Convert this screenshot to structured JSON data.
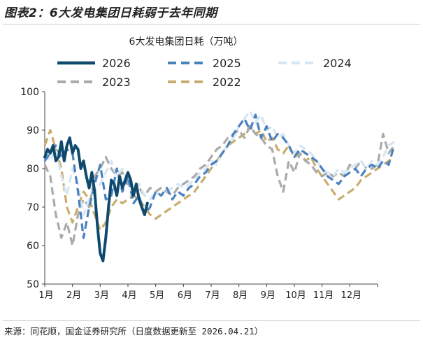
{
  "figure_title": "图表2：6大发电集团日耗弱于去年同期",
  "source_note": "来源：同花顺，国金证券研究所（日度数据更新至 2026.04.21）",
  "colors": {
    "2026": "#0f4a6e",
    "2025": "#4a82c0",
    "2024": "#d6e6f3",
    "2023": "#aaaaaa",
    "2022": "#c9ad6e"
  },
  "chart_data": {
    "type": "line",
    "title": "6大发电集团日耗（万吨）",
    "xlabel": "",
    "ylabel": "",
    "ylim": [
      50,
      100
    ],
    "yticks": [
      50,
      60,
      70,
      80,
      90,
      100
    ],
    "xlim": [
      0,
      12
    ],
    "xtick_labels": [
      "1月",
      "2月",
      "3月",
      "4月",
      "5月",
      "6月",
      "7月",
      "8月",
      "9月",
      "10月",
      "11月",
      "12月"
    ],
    "x_unit": "月 (0 = 1月初)",
    "legend_order": [
      "2026",
      "2025",
      "2024",
      "2023",
      "2022"
    ],
    "series": [
      {
        "name": "2026",
        "style": "solid",
        "x": [
          0,
          0.1,
          0.2,
          0.3,
          0.4,
          0.5,
          0.6,
          0.7,
          0.8,
          0.9,
          1.0,
          1.1,
          1.2,
          1.3,
          1.4,
          1.5,
          1.6,
          1.7,
          1.8,
          1.9,
          2.0,
          2.1,
          2.2,
          2.3,
          2.4,
          2.5,
          2.6,
          2.7,
          2.8,
          2.9,
          3.0,
          3.1,
          3.2,
          3.3,
          3.4,
          3.5,
          3.6,
          3.7
        ],
        "values": [
          83,
          85,
          84,
          86,
          82,
          83,
          87,
          82,
          86,
          88,
          84,
          86,
          85,
          80,
          82,
          78,
          75,
          79,
          74,
          65,
          58,
          56,
          62,
          70,
          77,
          76,
          73,
          78,
          75,
          77,
          79,
          77,
          73,
          76,
          72,
          70,
          68,
          71
        ]
      },
      {
        "name": "2025",
        "style": "dashed",
        "x": [
          0,
          0.2,
          0.4,
          0.6,
          0.8,
          1.0,
          1.2,
          1.4,
          1.6,
          1.8,
          2.0,
          2.2,
          2.4,
          2.6,
          2.8,
          3.0,
          3.2,
          3.4,
          3.6,
          3.8,
          4.0,
          4.2,
          4.4,
          4.6,
          4.8,
          5.0,
          5.2,
          5.4,
          5.6,
          5.8,
          6.0,
          6.2,
          6.4,
          6.6,
          6.8,
          7.0,
          7.2,
          7.4,
          7.6,
          7.8,
          8.0,
          8.2,
          8.4,
          8.6,
          8.8,
          9.0,
          9.2,
          9.4,
          9.6,
          9.8,
          10.0,
          10.2,
          10.4,
          10.6,
          10.8,
          11.0,
          11.2,
          11.4,
          11.6,
          11.8,
          12.0,
          12.2,
          12.4,
          12.6
        ],
        "values": [
          82,
          84,
          86,
          83,
          85,
          84,
          74,
          62,
          70,
          76,
          81,
          72,
          73,
          80,
          74,
          78,
          71,
          73,
          68,
          70,
          74,
          73,
          75,
          72,
          74,
          73,
          75,
          76,
          78,
          79,
          81,
          82,
          84,
          86,
          89,
          91,
          93,
          90,
          94,
          88,
          91,
          87,
          89,
          88,
          86,
          83,
          85,
          84,
          83,
          82,
          80,
          78,
          77,
          76,
          78,
          79,
          80,
          78,
          80,
          81,
          80,
          82,
          81,
          86
        ]
      },
      {
        "name": "2024",
        "style": "dashed",
        "x": [
          0,
          0.2,
          0.4,
          0.6,
          0.8,
          1.0,
          1.2,
          1.4,
          1.6,
          1.8,
          2.0,
          2.2,
          2.4,
          2.6,
          2.8,
          3.0,
          3.2,
          3.4,
          3.6,
          3.8,
          4.0,
          4.2,
          4.4,
          4.6,
          4.8,
          5.0,
          5.2,
          5.4,
          5.6,
          5.8,
          6.0,
          6.2,
          6.4,
          6.6,
          6.8,
          7.0,
          7.2,
          7.4,
          7.6,
          7.8,
          8.0,
          8.2,
          8.4,
          8.6,
          8.8,
          9.0,
          9.2,
          9.4,
          9.6,
          9.8,
          10.0,
          10.2,
          10.4,
          10.6,
          10.8,
          11.0,
          11.2,
          11.4,
          11.6,
          11.8,
          12.0,
          12.2,
          12.4,
          12.6
        ],
        "values": [
          84,
          82,
          85,
          78,
          73,
          80,
          76,
          68,
          72,
          74,
          76,
          79,
          82,
          78,
          80,
          77,
          74,
          76,
          73,
          72,
          74,
          73,
          74,
          75,
          76,
          75,
          76,
          77,
          79,
          80,
          82,
          81,
          84,
          86,
          88,
          91,
          93,
          95,
          92,
          94,
          90,
          91,
          88,
          89,
          86,
          84,
          86,
          85,
          84,
          82,
          80,
          79,
          78,
          80,
          79,
          80,
          81,
          82,
          80,
          82,
          81,
          83,
          86,
          87
        ]
      },
      {
        "name": "2023",
        "style": "dashed",
        "x": [
          0,
          0.2,
          0.4,
          0.6,
          0.8,
          1.0,
          1.2,
          1.4,
          1.6,
          1.8,
          2.0,
          2.2,
          2.4,
          2.6,
          2.8,
          3.0,
          3.2,
          3.4,
          3.6,
          3.8,
          4.0,
          4.2,
          4.4,
          4.6,
          4.8,
          5.0,
          5.2,
          5.4,
          5.6,
          5.8,
          6.0,
          6.2,
          6.4,
          6.6,
          6.8,
          7.0,
          7.2,
          7.4,
          7.6,
          7.8,
          8.0,
          8.2,
          8.4,
          8.6,
          8.8,
          9.0,
          9.2,
          9.4,
          9.6,
          9.8,
          10.0,
          10.2,
          10.4,
          10.6,
          10.8,
          11.0,
          11.2,
          11.4,
          11.6,
          11.8,
          12.0,
          12.2,
          12.4,
          12.6
        ],
        "values": [
          81,
          78,
          68,
          62,
          66,
          60,
          68,
          72,
          70,
          78,
          80,
          83,
          80,
          78,
          79,
          76,
          74,
          75,
          73,
          75,
          74,
          75,
          74,
          73,
          75,
          76,
          77,
          78,
          80,
          81,
          83,
          85,
          86,
          88,
          89,
          90,
          88,
          91,
          89,
          88,
          86,
          85,
          78,
          74,
          82,
          79,
          84,
          82,
          81,
          79,
          78,
          79,
          78,
          79,
          78,
          81,
          80,
          82,
          80,
          80,
          81,
          89,
          84,
          86
        ]
      },
      {
        "name": "2022",
        "style": "dashed",
        "x": [
          0,
          0.2,
          0.4,
          0.6,
          0.8,
          1.0,
          1.2,
          1.4,
          1.6,
          1.8,
          2.0,
          2.2,
          2.4,
          2.6,
          2.8,
          3.0,
          3.2,
          3.4,
          3.6,
          3.8,
          4.0,
          4.2,
          4.4,
          4.6,
          4.8,
          5.0,
          5.2,
          5.4,
          5.6,
          5.8,
          6.0,
          6.2,
          6.4,
          6.6,
          6.8,
          7.0,
          7.2,
          7.4,
          7.6,
          7.8,
          8.0,
          8.2,
          8.4,
          8.6,
          8.8,
          9.0,
          9.2,
          9.4,
          9.6,
          9.8,
          10.0,
          10.2,
          10.4,
          10.6,
          10.8,
          11.0,
          11.2,
          11.4,
          11.6,
          11.8,
          12.0,
          12.2,
          12.4,
          12.6
        ],
        "values": [
          86,
          90,
          85,
          80,
          70,
          66,
          70,
          74,
          72,
          68,
          64,
          66,
          70,
          72,
          71,
          72,
          73,
          72,
          70,
          68,
          67,
          68,
          69,
          70,
          71,
          72,
          73,
          74,
          76,
          78,
          80,
          82,
          84,
          86,
          87,
          88,
          89,
          91,
          89,
          90,
          87,
          88,
          85,
          84,
          86,
          83,
          84,
          82,
          83,
          80,
          78,
          76,
          74,
          72,
          73,
          74,
          75,
          77,
          78,
          79,
          80,
          81,
          82,
          83
        ]
      }
    ]
  }
}
